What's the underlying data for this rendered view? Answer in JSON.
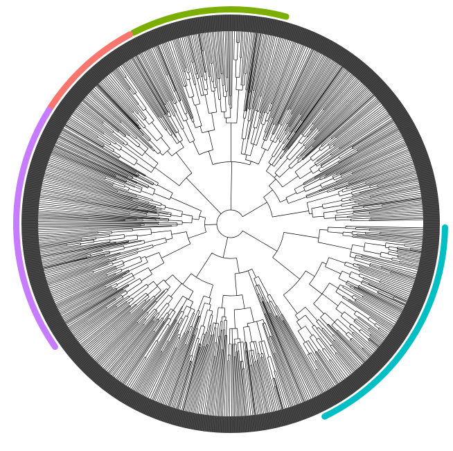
{
  "figure": {
    "kind": "circular-phylogenetic-tree",
    "background": "#ffffff",
    "branch_color": "#000000",
    "tip_band_color": "#3a3a3a",
    "tip_stroke_color": "#6a6a6a"
  },
  "clade_bands": [
    {
      "color": "#7cae00",
      "start_deg": -117,
      "end_deg": -75
    },
    {
      "color": "#f8766d",
      "start_deg": -148,
      "end_deg": -118
    },
    {
      "color": "#c77cff",
      "start_deg": -215,
      "end_deg": -148
    },
    {
      "color": "#00bfc4",
      "start_deg": -296,
      "end_deg": -359
    }
  ]
}
